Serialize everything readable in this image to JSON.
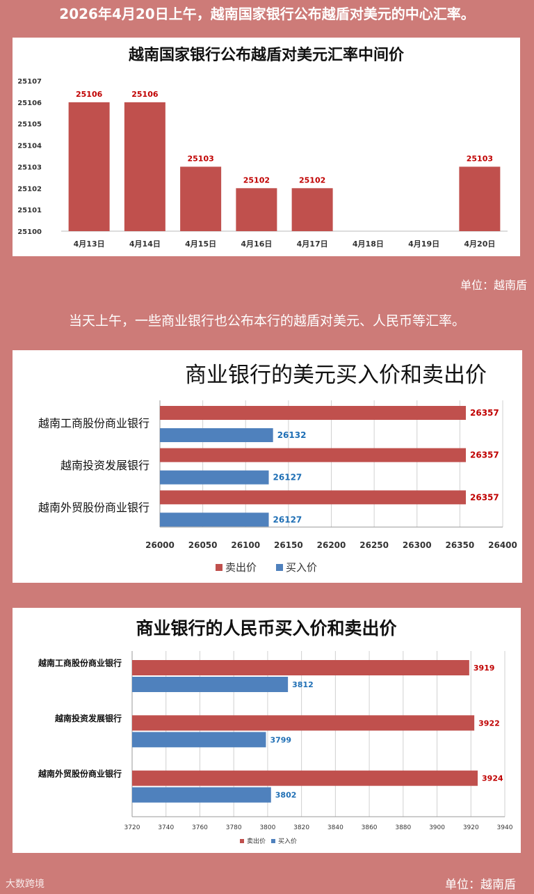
{
  "headline": "2026年4月20日上午，越南国家银行公布越盾对美元的中心汇率。",
  "subheadline": "当天上午，一些商业银行也公布本行的越盾对美元、人民币等汇率。",
  "unit1": "单位：越南盾",
  "unit2": "单位：越南盾",
  "watermark": "大数跨境",
  "colors": {
    "sell": "#c0504d",
    "buy": "#4f81bd",
    "background": "#cd7b78",
    "label_red": "#c00000",
    "label_blue": "#1f6fb5"
  },
  "chart_data": [
    {
      "type": "bar",
      "title": "越南国家银行公布越盾对美元汇率中间价",
      "categories": [
        "4月13日",
        "4月14日",
        "4月15日",
        "4月16日",
        "4月17日",
        "4月18日",
        "4月19日",
        "4月20日"
      ],
      "values": [
        25106,
        25106,
        25103,
        25102,
        25102,
        null,
        null,
        25103
      ],
      "ylim": [
        25100,
        25107
      ],
      "yticks": [
        "25100",
        "25101",
        "25102",
        "25103",
        "25104",
        "25105",
        "25106",
        "25107"
      ],
      "xlabel": "",
      "ylabel": "",
      "grid": false
    },
    {
      "type": "bar",
      "orientation": "horizontal",
      "title": "商业银行的美元买入价和卖出价",
      "categories": [
        "越南工商股份商业银行",
        "越南投资发展银行",
        "越南外贸股份商业银行"
      ],
      "series": [
        {
          "name": "卖出价",
          "values": [
            26357,
            26357,
            26357
          ]
        },
        {
          "name": "买入价",
          "values": [
            26132,
            26127,
            26127
          ]
        }
      ],
      "xlim": [
        26000,
        26400
      ],
      "xticks": [
        "26000",
        "26050",
        "26100",
        "26150",
        "26200",
        "26250",
        "26300",
        "26350",
        "26400"
      ],
      "legend": "bottom",
      "grid": true
    },
    {
      "type": "bar",
      "orientation": "horizontal",
      "title": "商业银行的人民币买入价和卖出价",
      "categories": [
        "越南工商股份商业银行",
        "越南投资发展银行",
        "越南外贸股份商业银行"
      ],
      "series": [
        {
          "name": "卖出价",
          "values": [
            3919,
            3922,
            3924
          ]
        },
        {
          "name": "买入价",
          "values": [
            3812,
            3799,
            3802
          ]
        }
      ],
      "xlim": [
        3720,
        3940
      ],
      "xticks": [
        "3720",
        "3740",
        "3760",
        "3780",
        "3800",
        "3820",
        "3840",
        "3860",
        "3880",
        "3900",
        "3920",
        "3940"
      ],
      "legend": "bottom",
      "grid": true
    }
  ]
}
